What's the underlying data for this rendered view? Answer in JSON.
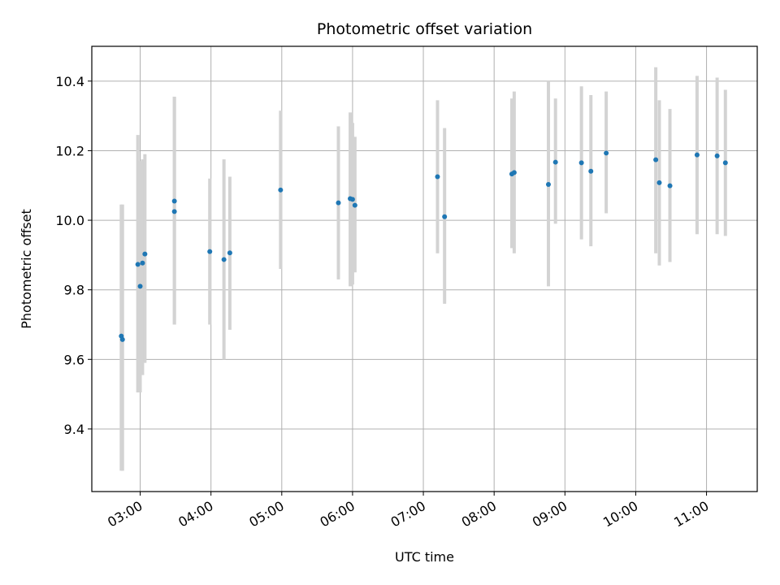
{
  "chart_data": {
    "type": "scatter",
    "title": "Photometric offset variation",
    "xlabel": "UTC time",
    "ylabel": "Photometric offset",
    "x_ticks": [
      "03:00",
      "04:00",
      "05:00",
      "06:00",
      "07:00",
      "08:00",
      "09:00",
      "10:00",
      "11:00"
    ],
    "y_ticks": [
      "9.4",
      "9.6",
      "9.8",
      "10.0",
      "10.2",
      "10.4"
    ],
    "xlim": [
      "02:19",
      "11:43"
    ],
    "ylim": [
      9.22,
      10.5
    ],
    "grid": true,
    "colors": {
      "points": "#1f77b4",
      "errorbars": "#d3d3d3",
      "grid": "#b0b0b0"
    },
    "points": [
      {
        "x": "02:44",
        "y": 9.667,
        "ylo": 9.28,
        "yhi": 10.045
      },
      {
        "x": "02:45",
        "y": 9.657,
        "ylo": 9.28,
        "yhi": 10.045
      },
      {
        "x": "02:58",
        "y": 9.873,
        "ylo": 9.505,
        "yhi": 10.245
      },
      {
        "x": "03:00",
        "y": 9.81,
        "ylo": 9.505,
        "yhi": 10.17
      },
      {
        "x": "03:02",
        "y": 9.877,
        "ylo": 9.555,
        "yhi": 10.175
      },
      {
        "x": "03:04",
        "y": 9.903,
        "ylo": 9.59,
        "yhi": 10.19
      },
      {
        "x": "03:29",
        "y": 10.055,
        "ylo": 9.7,
        "yhi": 10.355
      },
      {
        "x": "03:29",
        "y": 10.025,
        "ylo": 9.7,
        "yhi": 10.355
      },
      {
        "x": "03:59",
        "y": 9.91,
        "ylo": 9.7,
        "yhi": 10.12
      },
      {
        "x": "04:11",
        "y": 9.887,
        "ylo": 9.6,
        "yhi": 10.175
      },
      {
        "x": "04:16",
        "y": 9.906,
        "ylo": 9.685,
        "yhi": 10.125
      },
      {
        "x": "04:59",
        "y": 10.087,
        "ylo": 9.86,
        "yhi": 10.315
      },
      {
        "x": "05:48",
        "y": 10.05,
        "ylo": 9.83,
        "yhi": 10.27
      },
      {
        "x": "05:58",
        "y": 10.062,
        "ylo": 9.81,
        "yhi": 10.31
      },
      {
        "x": "06:00",
        "y": 10.06,
        "ylo": 9.815,
        "yhi": 10.28
      },
      {
        "x": "06:02",
        "y": 10.043,
        "ylo": 9.85,
        "yhi": 10.24
      },
      {
        "x": "07:12",
        "y": 10.125,
        "ylo": 9.905,
        "yhi": 10.345
      },
      {
        "x": "07:18",
        "y": 10.01,
        "ylo": 9.76,
        "yhi": 10.265
      },
      {
        "x": "08:15",
        "y": 10.133,
        "ylo": 9.92,
        "yhi": 10.35
      },
      {
        "x": "08:17",
        "y": 10.137,
        "ylo": 9.905,
        "yhi": 10.37
      },
      {
        "x": "08:46",
        "y": 10.103,
        "ylo": 9.81,
        "yhi": 10.4
      },
      {
        "x": "08:52",
        "y": 10.167,
        "ylo": 9.99,
        "yhi": 10.35
      },
      {
        "x": "09:14",
        "y": 10.165,
        "ylo": 9.945,
        "yhi": 10.385
      },
      {
        "x": "09:22",
        "y": 10.141,
        "ylo": 9.925,
        "yhi": 10.36
      },
      {
        "x": "09:35",
        "y": 10.193,
        "ylo": 10.02,
        "yhi": 10.37
      },
      {
        "x": "10:17",
        "y": 10.174,
        "ylo": 9.905,
        "yhi": 10.44
      },
      {
        "x": "10:20",
        "y": 10.108,
        "ylo": 9.87,
        "yhi": 10.345
      },
      {
        "x": "10:29",
        "y": 10.099,
        "ylo": 9.88,
        "yhi": 10.32
      },
      {
        "x": "10:52",
        "y": 10.188,
        "ylo": 9.96,
        "yhi": 10.415
      },
      {
        "x": "11:09",
        "y": 10.185,
        "ylo": 9.96,
        "yhi": 10.41
      },
      {
        "x": "11:16",
        "y": 10.165,
        "ylo": 9.955,
        "yhi": 10.375
      }
    ]
  }
}
